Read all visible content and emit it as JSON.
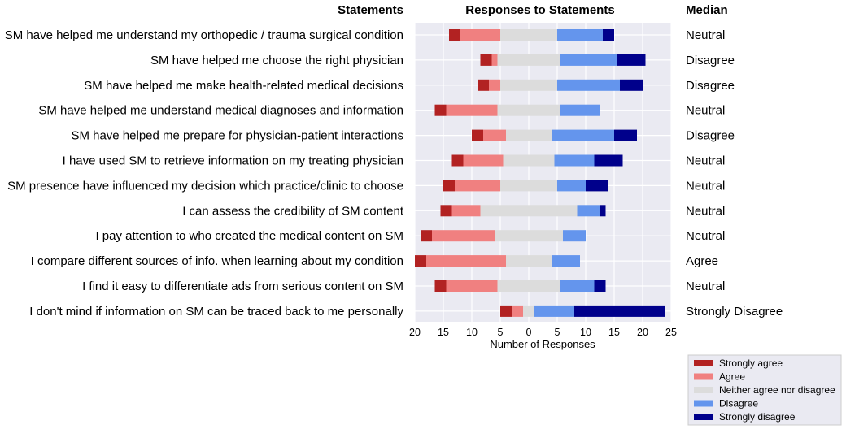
{
  "chart_data": {
    "type": "bar",
    "subtype": "diverging-stacked-horizontal",
    "title": "Responses to Statements",
    "statements_header": "Statements",
    "median_header": "Median",
    "xlabel": "Number of Responses",
    "xlim": [
      -20,
      25
    ],
    "xticks": [
      -20,
      -15,
      -10,
      -5,
      0,
      5,
      10,
      15,
      20,
      25
    ],
    "xtick_labels": [
      "20",
      "15",
      "10",
      "5",
      "0",
      "5",
      "10",
      "15",
      "20",
      "25"
    ],
    "grid": true,
    "legend_position": "bottom-right",
    "categories": [
      "SM have helped me understand my orthopedic / trauma surgical condition",
      "SM have helped  me choose the right physician",
      "SM have helped me make health-related medical decisions",
      "SM have helped me understand medical diagnoses and information",
      "SM have helped me prepare for physician-patient interactions",
      "I have used SM to retrieve information on my treating physician",
      "SM presence have influenced my decision which practice/clinic to choose",
      "I can assess the credibility of SM content",
      "I pay attention to who created the medical content on SM",
      "I compare different sources of info. when learning about my condition",
      "I find it easy to differentiate ads from serious content on SM",
      "I don't mind if information on SM can be traced back to me personally"
    ],
    "medians": [
      "Neutral",
      "Disagree",
      "Disagree",
      "Neutral",
      "Disagree",
      "Neutral",
      "Neutral",
      "Neutral",
      "Neutral",
      "Agree",
      "Neutral",
      "Strongly Disagree"
    ],
    "series": [
      {
        "name": "Strongly agree",
        "color": "#b22222",
        "values": [
          2,
          2,
          2,
          2,
          2,
          2,
          2,
          2,
          2,
          2,
          2,
          2
        ]
      },
      {
        "name": "Agree",
        "color": "#f08080",
        "values": [
          7,
          1,
          2,
          9,
          4,
          7,
          8,
          5,
          11,
          14,
          9,
          2
        ]
      },
      {
        "name": "Neither agree nor disagree",
        "color": "#dcdcdc",
        "values": [
          10,
          11,
          10,
          11,
          8,
          9,
          10,
          17,
          12,
          8,
          11,
          2
        ]
      },
      {
        "name": "Disagree",
        "color": "#6495ed",
        "values": [
          8,
          10,
          11,
          7,
          11,
          7,
          5,
          4,
          4,
          5,
          6,
          7
        ]
      },
      {
        "name": "Strongly disagree",
        "color": "#00008b",
        "values": [
          2,
          5,
          4,
          0,
          4,
          5,
          4,
          1,
          0,
          0,
          2,
          16
        ]
      }
    ]
  }
}
